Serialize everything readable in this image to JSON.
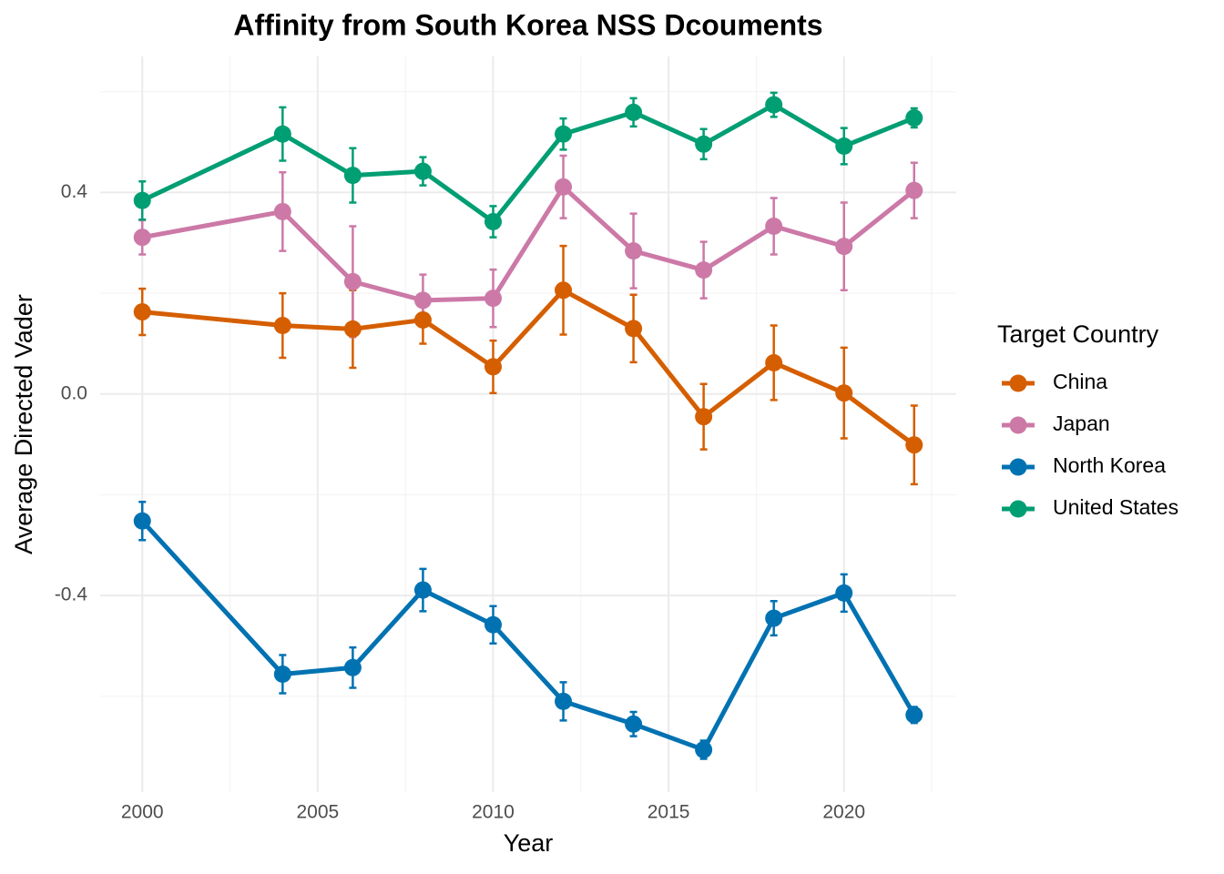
{
  "chart_data": {
    "type": "line",
    "title": "Affinity from South Korea NSS Dcouments",
    "x_label": "Year",
    "y_label": "Average Directed Vader",
    "legend_title": "Target Country",
    "legend_position": "right",
    "grid": true,
    "x": [
      2000,
      2004,
      2006,
      2008,
      2010,
      2012,
      2014,
      2016,
      2018,
      2020,
      2022
    ],
    "xlim": [
      1998.8,
      2023.2
    ],
    "xticks": [
      2000,
      2005,
      2010,
      2015,
      2020
    ],
    "x_minor_ticks": [
      2002.5,
      2007.5,
      2012.5,
      2017.5,
      2022.5
    ],
    "ylim": [
      -0.79,
      0.67
    ],
    "yticks": [
      -0.4,
      {
        "value": 0,
        "label": "0.0"
      },
      0.4
    ],
    "y_minor_ticks": [
      -0.6,
      -0.2,
      0.2,
      0.6
    ],
    "series": [
      {
        "name": "China",
        "color": "#D55E00",
        "values": [
          0.163,
          0.136,
          0.129,
          0.147,
          0.054,
          0.206,
          0.13,
          -0.045,
          0.062,
          0.002,
          -0.101
        ],
        "errors": [
          0.046,
          0.064,
          0.077,
          0.047,
          0.052,
          0.088,
          0.067,
          0.065,
          0.074,
          0.09,
          0.078
        ]
      },
      {
        "name": "Japan",
        "color": "#CC79A7",
        "values": [
          0.311,
          0.362,
          0.223,
          0.186,
          0.19,
          0.411,
          0.284,
          0.246,
          0.333,
          0.293,
          0.404
        ],
        "errors": [
          0.034,
          0.078,
          0.11,
          0.051,
          0.057,
          0.062,
          0.074,
          0.056,
          0.056,
          0.087,
          0.055
        ]
      },
      {
        "name": "North Korea",
        "color": "#0072B2",
        "values": [
          -0.252,
          -0.556,
          -0.543,
          -0.389,
          -0.458,
          -0.61,
          -0.655,
          -0.706,
          -0.445,
          -0.395,
          -0.637
        ],
        "errors": [
          0.038,
          0.038,
          0.04,
          0.042,
          0.037,
          0.038,
          0.024,
          0.018,
          0.034,
          0.037,
          0.016
        ]
      },
      {
        "name": "United States",
        "color": "#009E73",
        "values": [
          0.384,
          0.516,
          0.434,
          0.442,
          0.342,
          0.516,
          0.559,
          0.496,
          0.574,
          0.492,
          0.548
        ],
        "errors": [
          0.038,
          0.053,
          0.054,
          0.028,
          0.031,
          0.031,
          0.028,
          0.03,
          0.024,
          0.036,
          0.019
        ]
      }
    ]
  }
}
